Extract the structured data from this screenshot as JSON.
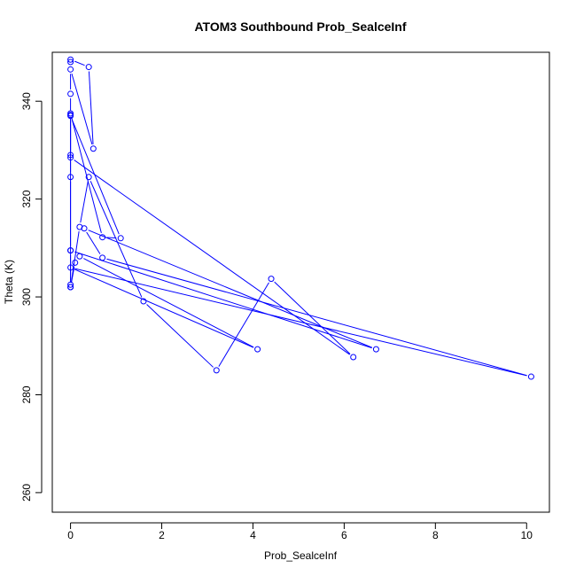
{
  "chart_data": {
    "type": "line",
    "title": "ATOM3 Southbound Prob_SealceInf",
    "xlabel": "Prob_SealceInf",
    "ylabel": "Theta (K)",
    "xlim": [
      -0.4,
      10.5
    ],
    "ylim": [
      256,
      350
    ],
    "x_ticks": [
      0,
      2,
      4,
      6,
      8,
      10
    ],
    "x_tick_labels": [
      "0",
      "2",
      "4",
      "6",
      "8",
      "10"
    ],
    "y_ticks": [
      260,
      280,
      300,
      320,
      340
    ],
    "y_tick_labels": [
      "260",
      "280",
      "300",
      "320",
      "340"
    ],
    "grid": false,
    "series": [
      {
        "name": "ATOM3 Southbound",
        "color": "#0000ff",
        "marker": "open-circle",
        "x": [
          0.0,
          0.0,
          0.4,
          0.5,
          0.0,
          0.0,
          0.0,
          0.0,
          0.0,
          0.0,
          0.0,
          0.0,
          0.2,
          0.4,
          1.6,
          3.2,
          4.4,
          6.2,
          0.0,
          0.0,
          0.7,
          1.1,
          0.0,
          0.0,
          0.1,
          0.2,
          4.1,
          0.0,
          10.1,
          0.7,
          0.3,
          6.7,
          0.0
        ],
        "y": [
          348.0,
          348.5,
          347.0,
          330.3,
          346.5,
          341.5,
          337.2,
          329.0,
          324.5,
          309.5,
          302.5,
          302.0,
          314.3,
          324.5,
          299.1,
          285.0,
          303.7,
          287.7,
          328.5,
          337.5,
          312.2,
          312.0,
          337.0,
          302.0,
          307.0,
          308.3,
          289.3,
          306.0,
          283.7,
          308.0,
          314.0,
          289.3,
          309.5
        ]
      }
    ]
  }
}
